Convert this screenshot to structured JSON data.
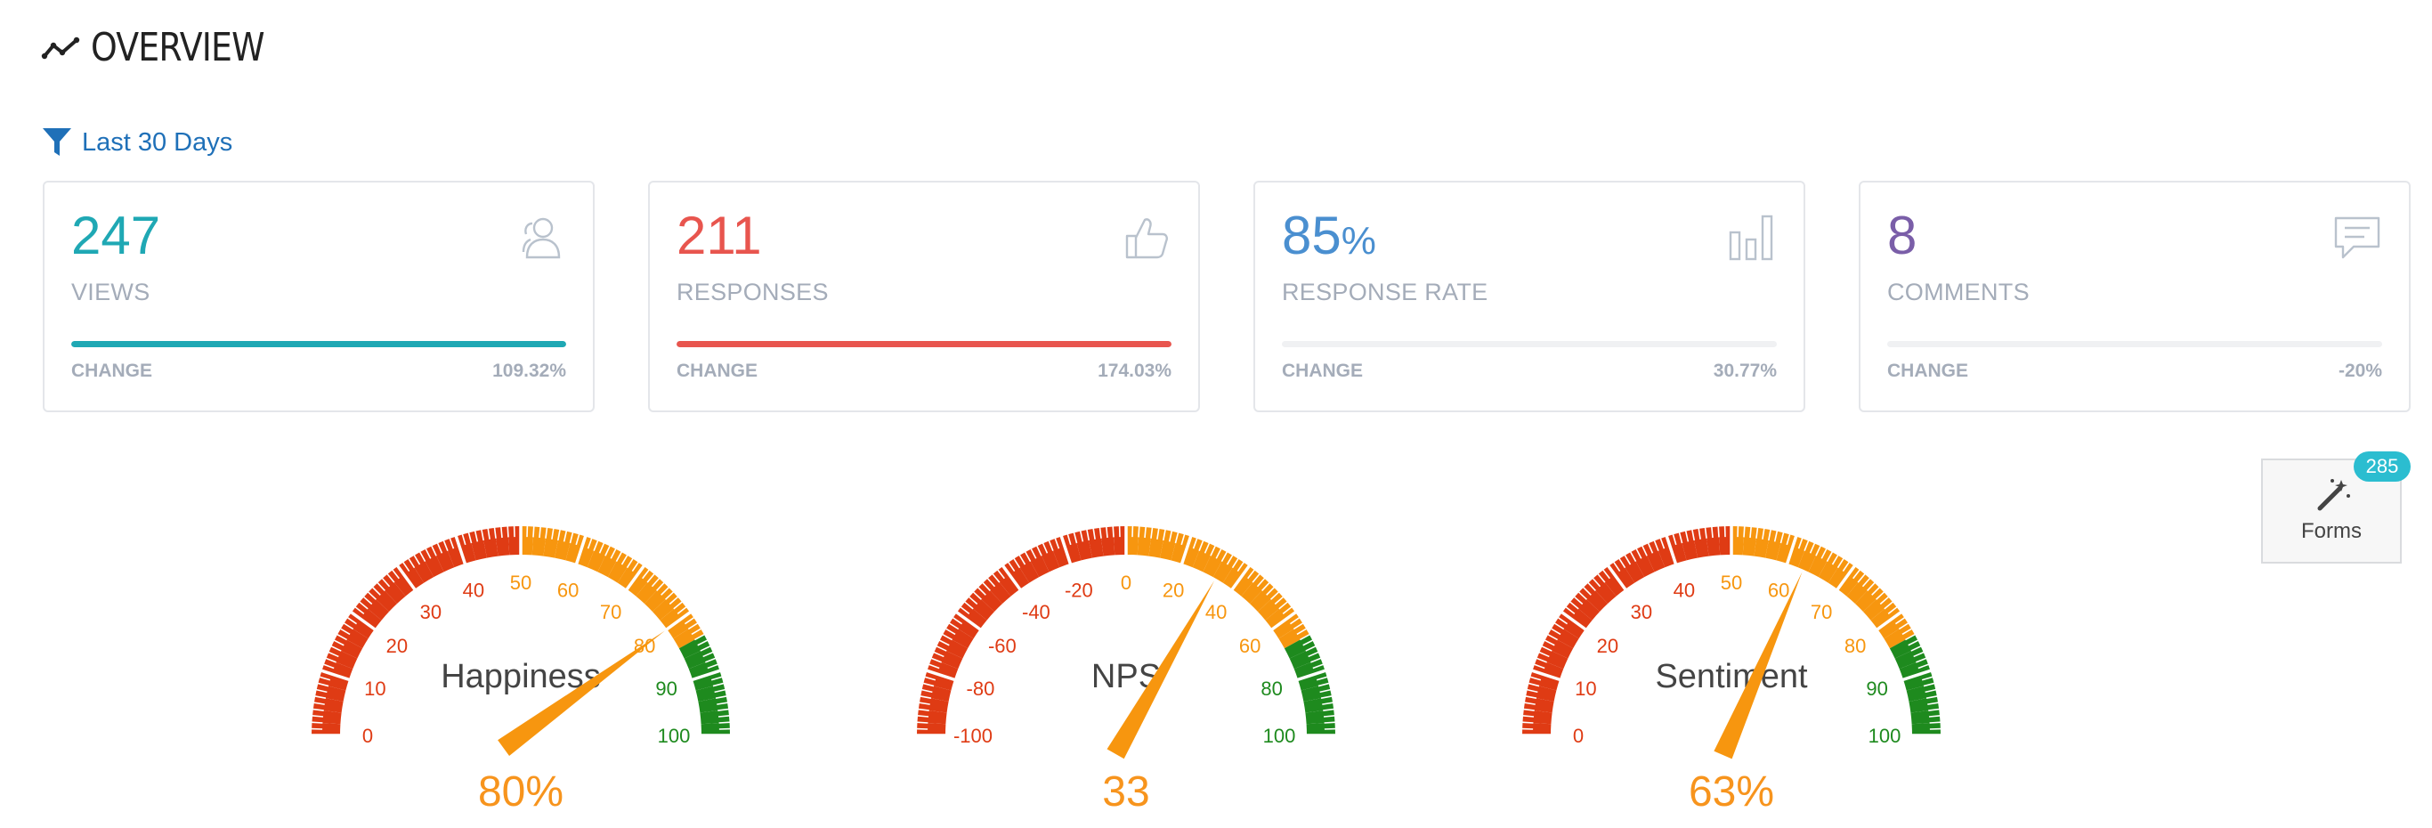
{
  "header": {
    "title": "OVERVIEW",
    "icon": "line-chart-icon"
  },
  "filter": {
    "label": "Last 30 Days",
    "icon": "filter-icon"
  },
  "cards": [
    {
      "value": "247",
      "unit": "",
      "label": "VIEWS",
      "change_label": "CHANGE",
      "change": "109.32%",
      "color": "#1fa8b4",
      "bar_fill": 1.0,
      "icon": "users-icon"
    },
    {
      "value": "211",
      "unit": "",
      "label": "RESPONSES",
      "change_label": "CHANGE",
      "change": "174.03%",
      "color": "#e8554e",
      "bar_fill": 1.0,
      "icon": "thumbs-up-icon"
    },
    {
      "value": "85",
      "unit": "%",
      "label": "RESPONSE RATE",
      "change_label": "CHANGE",
      "change": "30.77%",
      "color": "#4a8fd0",
      "bar_fill": 0.0,
      "icon": "bar-chart-icon"
    },
    {
      "value": "8",
      "unit": "",
      "label": "COMMENTS",
      "change_label": "CHANGE",
      "change": "-20%",
      "color": "#7a5ea8",
      "bar_fill": 0.0,
      "icon": "comment-icon"
    }
  ],
  "forms_button": {
    "label": "Forms",
    "badge": "285",
    "icon": "magic-wand-icon"
  },
  "gauges": [
    {
      "title": "Happiness",
      "min": 0,
      "max": 100,
      "value": 80,
      "display": "80%",
      "ticks": [
        "0",
        "10",
        "20",
        "30",
        "40",
        "50",
        "60",
        "70",
        "80",
        "90",
        "100"
      ]
    },
    {
      "title": "NPS",
      "min": -100,
      "max": 100,
      "value": 33,
      "display": "33",
      "ticks": [
        "-100",
        "-80",
        "-60",
        "-40",
        "-20",
        "0",
        "20",
        "40",
        "60",
        "80",
        "100"
      ]
    },
    {
      "title": "Sentiment",
      "min": 0,
      "max": 100,
      "value": 63,
      "display": "63%",
      "ticks": [
        "0",
        "10",
        "20",
        "30",
        "40",
        "50",
        "60",
        "70",
        "80",
        "90",
        "100"
      ]
    }
  ],
  "colors": {
    "red": "#df3b14",
    "orange": "#f7960f",
    "green": "#1e8a1e",
    "needle": "#f7960f"
  }
}
